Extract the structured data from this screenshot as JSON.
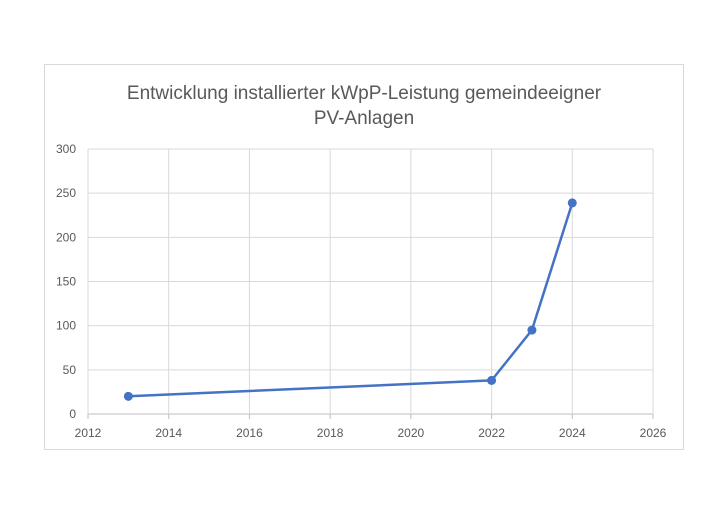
{
  "chart_data": {
    "type": "scatter",
    "title_lines": [
      "Entwicklung installierter kWpP-Leistung gemeindeeigner",
      "PV-Anlagen"
    ],
    "xlabel": "",
    "ylabel": "",
    "xlim": [
      2012,
      2026
    ],
    "ylim": [
      0,
      300
    ],
    "x_ticks": [
      2012,
      2014,
      2016,
      2018,
      2020,
      2022,
      2024,
      2026
    ],
    "y_ticks": [
      0,
      50,
      100,
      150,
      200,
      250,
      300
    ],
    "grid": true,
    "legend": "none",
    "series": [
      {
        "color": "#4472c4",
        "points": [
          {
            "x": 2013,
            "y": 20
          },
          {
            "x": 2022,
            "y": 38
          },
          {
            "x": 2023,
            "y": 95
          },
          {
            "x": 2024,
            "y": 239
          }
        ]
      }
    ]
  }
}
